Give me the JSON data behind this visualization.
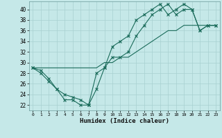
{
  "xlabel": "Humidex (Indice chaleur)",
  "background_color": "#c5e8e8",
  "grid_color": "#a8d0d0",
  "line_color": "#1a6b5a",
  "xlim": [
    -0.5,
    23.5
  ],
  "ylim": [
    21.0,
    41.5
  ],
  "yticks": [
    22,
    24,
    26,
    28,
    30,
    32,
    34,
    36,
    38,
    40
  ],
  "xticks": [
    0,
    1,
    2,
    3,
    4,
    5,
    6,
    7,
    8,
    9,
    10,
    11,
    12,
    13,
    14,
    15,
    16,
    17,
    18,
    19,
    20,
    21,
    22,
    23
  ],
  "line1_x": [
    0,
    1,
    2,
    3,
    4,
    5,
    6,
    7,
    8,
    9,
    10,
    11,
    12,
    13,
    14,
    15,
    16,
    17,
    18,
    19,
    20,
    21,
    22,
    23
  ],
  "line1_y": [
    29,
    28.5,
    27,
    25,
    24,
    23.5,
    23,
    22,
    28,
    29,
    33,
    34,
    35,
    38,
    39,
    40,
    41,
    39,
    40,
    41,
    40,
    36,
    37,
    37
  ],
  "line2_x": [
    0,
    1,
    2,
    3,
    4,
    5,
    6,
    7,
    8,
    9,
    10,
    11,
    12,
    13,
    14,
    15,
    16,
    17,
    18,
    19,
    20,
    21,
    22,
    23
  ],
  "line2_y": [
    29,
    29,
    29,
    29,
    29,
    29,
    29,
    29,
    29,
    30,
    30,
    31,
    31,
    32,
    33,
    34,
    35,
    36,
    36,
    37,
    37,
    37,
    37,
    37
  ],
  "line3_x": [
    0,
    1,
    2,
    3,
    4,
    5,
    6,
    7,
    8,
    9,
    10,
    11,
    12,
    13,
    14,
    15,
    16,
    17,
    18,
    19,
    20,
    21,
    22,
    23
  ],
  "line3_y": [
    29,
    28,
    26.5,
    25,
    23,
    23,
    22,
    22,
    25,
    29,
    31,
    31,
    32,
    35,
    37,
    39,
    40,
    41,
    39,
    40,
    40,
    36,
    37,
    37
  ]
}
